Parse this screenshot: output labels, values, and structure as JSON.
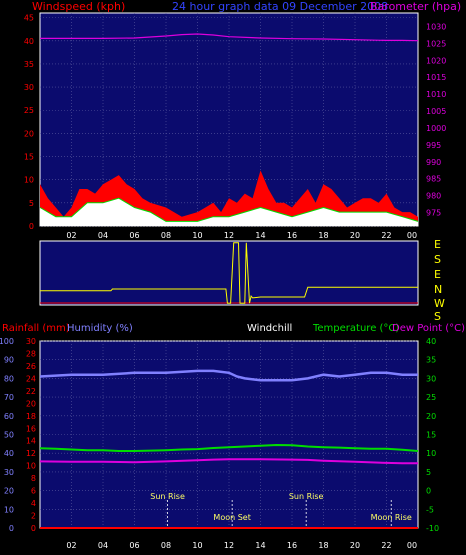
{
  "header": {
    "left_label": "Windspeed (kph)",
    "center_label": "24 hour graph data  09 December 2008",
    "right_label": "Barometer (hpa)"
  },
  "compass": [
    "E",
    "S",
    "E",
    "N",
    "W",
    "S"
  ],
  "labels": {
    "rainfall": "Rainfall (mm)",
    "humidity": "Humidity (%)",
    "windchill": "Windchill",
    "temperature": "Temperature (°C)",
    "dewpoint": "Dew Point (°C)"
  },
  "colors": {
    "background": "#000000",
    "plot_area": "#0b0b6e",
    "windspeed": "#ff0000",
    "barometer": "#dd00dd",
    "humidity": "#8080ff",
    "temperature": "#00dd00",
    "dewpoint": "#dd00dd",
    "rainfall": "#ff0000",
    "direction": "#ffff00",
    "axis_text_white": "#ffffff",
    "axis_text_yellow": "#ffff00"
  },
  "events": [
    {
      "label": "Sun Rise",
      "time": 8.1
    },
    {
      "label": "Sun Rise",
      "time": 16.9
    },
    {
      "label": "Moon Set",
      "time": 12.2
    },
    {
      "label": "Moon Rise",
      "time": 22.3
    }
  ],
  "x_tick_labels": [
    "02",
    "04",
    "06",
    "08",
    "10",
    "12",
    "14",
    "16",
    "18",
    "20",
    "22",
    "00"
  ],
  "chart_data": [
    {
      "type": "line",
      "title": "24 hour graph data  09 December 2008",
      "xlabel": "",
      "x_range": [
        0,
        24
      ],
      "ylabel_left": "Windspeed (kph)",
      "ylim_left": [
        0,
        46
      ],
      "yticks_left": [
        0,
        5,
        10,
        15,
        20,
        25,
        30,
        35,
        40,
        45
      ],
      "ylabel_right": "Barometer (hpa)",
      "ylim_right": [
        971,
        1034
      ],
      "yticks_right": [
        975,
        980,
        985,
        990,
        995,
        1000,
        1005,
        1010,
        1015,
        1020,
        1025,
        1030
      ],
      "grid": true,
      "series": [
        {
          "name": "Barometer (hpa)",
          "axis": "right",
          "x": [
            0,
            2,
            4,
            6,
            8,
            9,
            10,
            11,
            12,
            14,
            16,
            18,
            20,
            22,
            23,
            24
          ],
          "values": [
            1026.5,
            1026.5,
            1026.5,
            1026.6,
            1027.2,
            1027.6,
            1027.8,
            1027.5,
            1027.0,
            1026.6,
            1026.4,
            1026.3,
            1026.1,
            1025.9,
            1025.9,
            1025.8
          ]
        },
        {
          "name": "Windspeed (kph)",
          "axis": "left",
          "x": [
            0,
            0.5,
            1,
            1.5,
            2,
            2.5,
            3,
            3.5,
            4,
            4.5,
            5,
            5.5,
            6,
            6.5,
            7,
            8,
            9,
            10,
            10.5,
            11,
            11.5,
            12,
            12.5,
            13,
            13.5,
            14,
            14.5,
            15,
            15.5,
            16,
            16.5,
            17,
            17.5,
            18,
            18.5,
            19,
            19.5,
            20,
            20.5,
            21,
            21.5,
            22,
            22.5,
            23,
            23.5,
            24
          ],
          "values": [
            9,
            6,
            4,
            2,
            4,
            8,
            8,
            7,
            9,
            10,
            11,
            9,
            8,
            6,
            5,
            4,
            2,
            3,
            4,
            5,
            3,
            6,
            5,
            7,
            6,
            12,
            8,
            5,
            5,
            4,
            6,
            8,
            5,
            9,
            8,
            6,
            4,
            5,
            6,
            6,
            5,
            7,
            4,
            3,
            3,
            2
          ]
        },
        {
          "name": "Average wind",
          "axis": "left",
          "x": [
            0,
            1,
            2,
            3,
            4,
            5,
            6,
            7,
            8,
            10,
            11,
            12,
            13,
            14,
            15,
            16,
            17,
            18,
            19,
            20,
            21,
            22,
            23,
            24
          ],
          "values": [
            4,
            2,
            2,
            5,
            5,
            6,
            4,
            3,
            1,
            1,
            2,
            2,
            3,
            4,
            3,
            2,
            3,
            4,
            3,
            3,
            3,
            3,
            2,
            1
          ]
        }
      ]
    },
    {
      "type": "line",
      "title": "",
      "xlabel": "",
      "x_range": [
        0,
        24
      ],
      "ylim": [
        0,
        360
      ],
      "grid": false,
      "series": [
        {
          "name": "",
          "x": [
            0,
            4.5,
            4.6,
            4.8,
            6,
            8,
            10,
            11.8,
            11.9,
            12.1,
            12.3,
            12.6,
            12.7,
            13,
            13.1,
            13.3,
            13.4,
            13.5,
            14,
            16,
            16.8,
            17,
            20,
            24
          ],
          "values": [
            80,
            80,
            90,
            90,
            90,
            90,
            90,
            90,
            10,
            10,
            350,
            350,
            10,
            10,
            350,
            10,
            50,
            40,
            45,
            45,
            45,
            100,
            100,
            100
          ]
        }
      ]
    },
    {
      "type": "line",
      "title": "",
      "xlabel": "",
      "x_range": [
        0,
        24
      ],
      "ylabel_left": "Humidity (%)",
      "ylim_left": [
        0,
        100
      ],
      "yticks_left": [
        0,
        10,
        20,
        30,
        40,
        50,
        60,
        70,
        80,
        90,
        100
      ],
      "ylabel_rainfall": "Rainfall (mm)",
      "ylim_rainfall": [
        0,
        30
      ],
      "yticks_rainfall": [
        0,
        2,
        4,
        6,
        8,
        10,
        12,
        14,
        16,
        18,
        20,
        22,
        24,
        26,
        28,
        30
      ],
      "ylabel_right": "Temperature (°C)",
      "ylim_right": [
        -10,
        40
      ],
      "yticks_right": [
        -10,
        -5,
        0,
        5,
        10,
        15,
        20,
        25,
        30,
        35,
        40
      ],
      "grid": true,
      "series": [
        {
          "name": "Humidity (%)",
          "axis": "left",
          "x": [
            0,
            2,
            4,
            6,
            8,
            10,
            11,
            12,
            12.5,
            13,
            14,
            15,
            16,
            17,
            18,
            19,
            20,
            21,
            22,
            23,
            24
          ],
          "values": [
            81,
            82,
            82,
            83,
            83,
            84,
            84,
            83,
            81,
            80,
            79,
            79,
            79,
            80,
            82,
            81,
            82,
            83,
            83,
            82,
            82
          ]
        },
        {
          "name": "Temperature (°C)",
          "axis": "right",
          "x": [
            0,
            1,
            2,
            3,
            4,
            5,
            6,
            7,
            8,
            9,
            10,
            11,
            12,
            13,
            14,
            15,
            16,
            17,
            18,
            19,
            20,
            21,
            22,
            23,
            24
          ],
          "values": [
            11.3,
            11.2,
            11.0,
            10.8,
            10.8,
            10.6,
            10.6,
            10.7,
            10.8,
            11.0,
            11.1,
            11.4,
            11.6,
            11.8,
            12.0,
            12.2,
            12.1,
            11.8,
            11.6,
            11.5,
            11.3,
            11.2,
            11.2,
            10.9,
            10.6
          ]
        },
        {
          "name": "Dew Point (°C)",
          "axis": "right",
          "x": [
            0,
            2,
            4,
            6,
            8,
            10,
            11,
            12,
            14,
            16,
            17,
            18,
            20,
            22,
            23,
            24
          ],
          "values": [
            7.8,
            7.7,
            7.7,
            7.6,
            7.8,
            8.1,
            8.3,
            8.4,
            8.4,
            8.3,
            8.2,
            8.0,
            7.7,
            7.4,
            7.3,
            7.3
          ]
        },
        {
          "name": "Rainfall (mm)",
          "axis": "rainfall",
          "x": [
            0,
            24
          ],
          "values": [
            0,
            0
          ]
        }
      ]
    }
  ]
}
